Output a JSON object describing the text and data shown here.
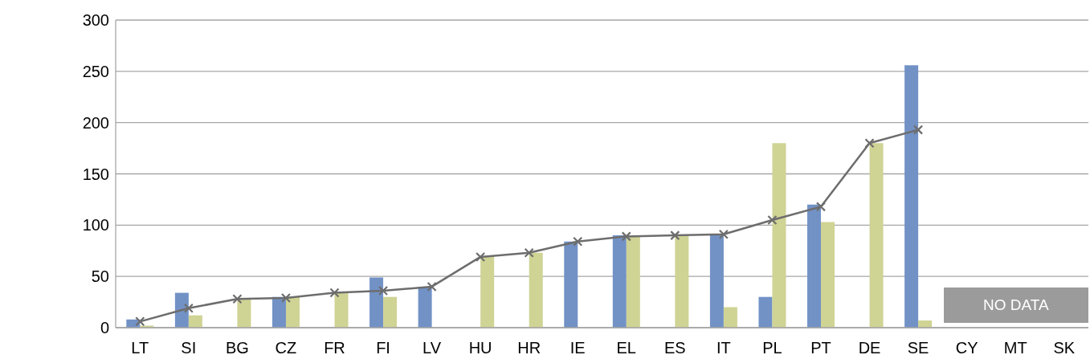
{
  "chart_data": {
    "type": "bar",
    "categories": [
      "LT",
      "SI",
      "BG",
      "CZ",
      "FR",
      "FI",
      "LV",
      "HU",
      "HR",
      "IE",
      "EL",
      "ES",
      "IT",
      "PL",
      "PT",
      "DE",
      "SE",
      "CY",
      "MT",
      "SK"
    ],
    "series": [
      {
        "color": "#7292c6",
        "values": [
          8,
          34,
          null,
          30,
          null,
          49,
          40,
          null,
          null,
          84,
          90,
          null,
          91,
          30,
          120,
          null,
          256,
          null,
          null,
          null
        ]
      },
      {
        "color": "#cfd394",
        "values": [
          2,
          12,
          28,
          30,
          34,
          30,
          null,
          70,
          73,
          null,
          90,
          90,
          20,
          180,
          103,
          180,
          7,
          null,
          null,
          null
        ]
      },
      {
        "type": "line",
        "color": "#6d6d6d",
        "values": [
          6,
          19,
          28,
          29,
          34,
          36,
          40,
          69,
          73,
          84,
          89,
          90,
          91,
          105,
          118,
          180,
          193,
          null,
          null,
          null
        ]
      }
    ],
    "ylim": [
      0,
      300
    ],
    "yticks": [
      0,
      50,
      100,
      150,
      200,
      250,
      300
    ],
    "grid": "y",
    "marker": "cross",
    "line_style": "solid",
    "annotations": [
      "NO DATA"
    ]
  }
}
